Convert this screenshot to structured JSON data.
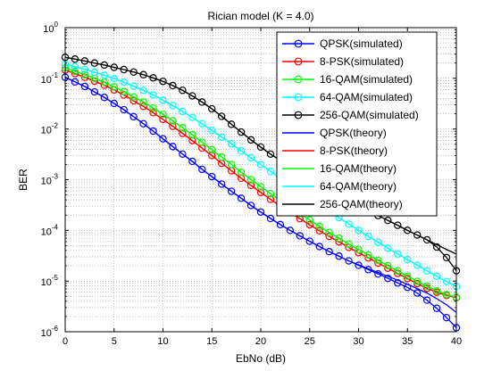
{
  "chart_data": {
    "type": "line",
    "title": "Rician model (K = 4.0)",
    "xlabel": "EbNo (dB)",
    "ylabel": "BER",
    "xlim": [
      0,
      40
    ],
    "ylim": [
      1e-06,
      1
    ],
    "y_scale": "log",
    "grid": true,
    "legend_position": "top-right",
    "x_ticks": [
      "0",
      "5",
      "10",
      "15",
      "20",
      "25",
      "30",
      "35",
      "40"
    ],
    "y_ticks": [
      {
        "base": "10",
        "exp": "0"
      },
      {
        "base": "10",
        "exp": "-1"
      },
      {
        "base": "10",
        "exp": "-2"
      },
      {
        "base": "10",
        "exp": "-3"
      },
      {
        "base": "10",
        "exp": "-4"
      },
      {
        "base": "10",
        "exp": "-5"
      },
      {
        "base": "10",
        "exp": "-6"
      }
    ],
    "x": [
      0,
      1,
      2,
      3,
      4,
      5,
      6,
      7,
      8,
      9,
      10,
      11,
      12,
      13,
      14,
      15,
      16,
      17,
      18,
      19,
      20,
      21,
      22,
      23,
      24,
      25,
      26,
      27,
      28,
      29,
      30,
      31,
      32,
      33,
      34,
      35,
      36,
      37,
      38,
      39,
      40
    ],
    "series": [
      {
        "name": "QPSK(simulated)",
        "color": "#0000ff",
        "marker": "circle",
        "values": [
          0.105,
          0.085,
          0.069,
          0.054,
          0.042,
          0.032,
          0.024,
          0.0175,
          0.0127,
          0.0091,
          0.0064,
          0.0045,
          0.0032,
          0.0023,
          0.0016,
          0.00115,
          0.00082,
          0.00059,
          0.00043,
          0.00031,
          0.00023,
          0.000172,
          0.00013,
          0.0001,
          7.8e-05,
          6.1e-05,
          4.8e-05,
          3.8e-05,
          3.1e-05,
          2.5e-05,
          2.05e-05,
          1.68e-05,
          1.38e-05,
          1.13e-05,
          9.2e-06,
          7.5e-06,
          5.8e-06,
          4.2e-06,
          2.9e-06,
          1.9e-06,
          1.2e-06
        ]
      },
      {
        "name": "8-PSK(simulated)",
        "color": "#ff0000",
        "marker": "circle",
        "values": [
          0.145,
          0.124,
          0.105,
          0.088,
          0.073,
          0.059,
          0.047,
          0.036,
          0.028,
          0.021,
          0.0155,
          0.0113,
          0.0082,
          0.0059,
          0.0042,
          0.003,
          0.0021,
          0.0015,
          0.00107,
          0.00077,
          0.00056,
          0.00041,
          0.0003,
          0.000225,
          0.00017,
          0.000129,
          9.85e-05,
          7.6e-05,
          5.92e-05,
          4.62e-05,
          3.62e-05,
          2.86e-05,
          2.26e-05,
          1.79e-05,
          1.41e-05,
          1.12e-05,
          8.9e-06,
          7.2e-06,
          6e-06,
          5.2e-06,
          4.7e-06
        ]
      },
      {
        "name": "16-QAM(simulated)",
        "color": "#00ff00",
        "marker": "circle",
        "values": [
          0.16,
          0.138,
          0.118,
          0.1,
          0.084,
          0.068,
          0.055,
          0.043,
          0.034,
          0.026,
          0.0195,
          0.0145,
          0.0106,
          0.0077,
          0.0055,
          0.0039,
          0.0028,
          0.002,
          0.0014,
          0.001,
          0.00073,
          0.00053,
          0.00039,
          0.00029,
          0.000215,
          0.00016,
          0.00012,
          9.1e-05,
          7e-05,
          5.4e-05,
          4.2e-05,
          3.28e-05,
          2.57e-05,
          2.02e-05,
          1.59e-05,
          1.25e-05,
          9.9e-06,
          7.9e-06,
          6.4e-06,
          5.4e-06,
          4.8e-06
        ]
      },
      {
        "name": "64-QAM(simulated)",
        "color": "#00ffff",
        "marker": "circle",
        "values": [
          0.19,
          0.17,
          0.15,
          0.132,
          0.115,
          0.099,
          0.084,
          0.07,
          0.058,
          0.047,
          0.037,
          0.029,
          0.0222,
          0.0169,
          0.0127,
          0.0094,
          0.0069,
          0.0051,
          0.0037,
          0.0027,
          0.002,
          0.00145,
          0.00107,
          0.00079,
          0.00058,
          0.00043,
          0.00032,
          0.00024,
          0.000178,
          0.000133,
          0.0001,
          7.6e-05,
          5.8e-05,
          4.45e-05,
          3.43e-05,
          2.65e-05,
          2.05e-05,
          1.59e-05,
          1.24e-05,
          9.8e-06,
          7.8e-06
        ]
      },
      {
        "name": "256-QAM(simulated)",
        "color": "#000000",
        "marker": "circle",
        "values": [
          0.26,
          0.24,
          0.22,
          0.2,
          0.183,
          0.165,
          0.149,
          0.133,
          0.118,
          0.102,
          0.087,
          0.072,
          0.058,
          0.045,
          0.034,
          0.025,
          0.0178,
          0.0124,
          0.0087,
          0.0061,
          0.0044,
          0.0032,
          0.0024,
          0.0018,
          0.00138,
          0.00106,
          0.00082,
          0.00064,
          0.0005,
          0.00039,
          0.00031,
          0.000245,
          0.000196,
          0.000157,
          0.000126,
          0.0001,
          8.1e-05,
          6.5e-05,
          4.7e-05,
          2.9e-05,
          1.6e-05
        ]
      },
      {
        "name": "QPSK(theory)",
        "color": "#0000ff",
        "marker": "none",
        "values": [
          0.105,
          0.085,
          0.069,
          0.054,
          0.042,
          0.032,
          0.024,
          0.0175,
          0.0127,
          0.0091,
          0.0064,
          0.0045,
          0.0032,
          0.0023,
          0.0016,
          0.00115,
          0.00082,
          0.00059,
          0.00043,
          0.00031,
          0.00023,
          0.000172,
          0.00013,
          0.0001,
          7.8e-05,
          6.1e-05,
          4.8e-05,
          3.8e-05,
          3.1e-05,
          2.5e-05,
          2.1e-05,
          1.75e-05,
          1.47e-05,
          1.24e-05,
          1.04e-05,
          8.7e-06,
          7.1e-06,
          5.8e-06,
          4.5e-06,
          3.4e-06,
          2.4e-06
        ]
      },
      {
        "name": "8-PSK(theory)",
        "color": "#ff0000",
        "marker": "none",
        "values": [
          0.145,
          0.124,
          0.105,
          0.088,
          0.073,
          0.059,
          0.047,
          0.036,
          0.028,
          0.021,
          0.0155,
          0.0113,
          0.0082,
          0.0059,
          0.0042,
          0.003,
          0.0021,
          0.0015,
          0.00107,
          0.00077,
          0.00056,
          0.00041,
          0.0003,
          0.000225,
          0.00017,
          0.000129,
          9.85e-05,
          7.6e-05,
          5.92e-05,
          4.62e-05,
          3.62e-05,
          2.86e-05,
          2.26e-05,
          1.79e-05,
          1.41e-05,
          1.12e-05,
          8.9e-06,
          7.2e-06,
          6e-06,
          5.2e-06,
          4.7e-06
        ]
      },
      {
        "name": "16-QAM(theory)",
        "color": "#00ff00",
        "marker": "none",
        "values": [
          0.16,
          0.138,
          0.118,
          0.1,
          0.084,
          0.068,
          0.055,
          0.043,
          0.034,
          0.026,
          0.0195,
          0.0145,
          0.0106,
          0.0077,
          0.0055,
          0.0039,
          0.0028,
          0.002,
          0.0014,
          0.001,
          0.00073,
          0.00053,
          0.00039,
          0.00029,
          0.000215,
          0.00016,
          0.00012,
          9.1e-05,
          7e-05,
          5.4e-05,
          4.2e-05,
          3.28e-05,
          2.57e-05,
          2.02e-05,
          1.59e-05,
          1.25e-05,
          9.9e-06,
          7.9e-06,
          6.4e-06,
          5.4e-06,
          4.8e-06
        ]
      },
      {
        "name": "64-QAM(theory)",
        "color": "#00ffff",
        "marker": "none",
        "values": [
          0.19,
          0.17,
          0.15,
          0.132,
          0.115,
          0.099,
          0.084,
          0.07,
          0.058,
          0.047,
          0.037,
          0.029,
          0.0222,
          0.0169,
          0.0127,
          0.0094,
          0.0069,
          0.0051,
          0.0037,
          0.0027,
          0.002,
          0.00145,
          0.00107,
          0.00079,
          0.00058,
          0.00043,
          0.00032,
          0.00024,
          0.000178,
          0.000133,
          0.0001,
          7.6e-05,
          5.8e-05,
          4.45e-05,
          3.43e-05,
          2.65e-05,
          2.05e-05,
          1.59e-05,
          1.24e-05,
          9.8e-06,
          7.8e-06
        ]
      },
      {
        "name": "256-QAM(theory)",
        "color": "#000000",
        "marker": "none",
        "values": [
          0.26,
          0.24,
          0.22,
          0.2,
          0.183,
          0.165,
          0.149,
          0.133,
          0.118,
          0.102,
          0.087,
          0.072,
          0.058,
          0.045,
          0.034,
          0.025,
          0.0178,
          0.0124,
          0.0087,
          0.0061,
          0.0044,
          0.0032,
          0.0024,
          0.0018,
          0.00138,
          0.00106,
          0.00082,
          0.00064,
          0.0005,
          0.00039,
          0.00031,
          0.000245,
          0.000196,
          0.000157,
          0.000126,
          0.0001,
          8.1e-05,
          6.5e-05,
          5.2e-05,
          4.2e-05,
          3.4e-05
        ]
      }
    ]
  }
}
